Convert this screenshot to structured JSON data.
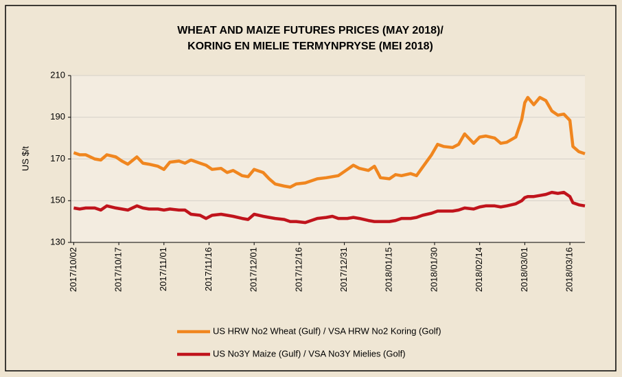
{
  "chart_data": {
    "type": "line",
    "title": [
      "WHEAT AND MAIZE FUTURES PRICES (MAY 2018)/",
      "KORING EN MIELIE TERMYNPRYSE (MEI 2018)"
    ],
    "y_label": "US $/t",
    "ylim": [
      130,
      210
    ],
    "yticks": [
      130,
      150,
      170,
      190,
      210
    ],
    "xlim": [
      "2017/10/01",
      "2018/03/21"
    ],
    "xticks": [
      "2017/10/02",
      "2017/10/17",
      "2017/11/01",
      "2017/11/16",
      "2017/12/01",
      "2017/12/16",
      "2017/12/31",
      "2018/01/15",
      "2018/01/30",
      "2018/02/14",
      "2018/03/01",
      "2018/03/16"
    ],
    "grid": true,
    "legend": "bottom",
    "x": [
      "2017/10/02",
      "2017/10/04",
      "2017/10/06",
      "2017/10/09",
      "2017/10/11",
      "2017/10/13",
      "2017/10/16",
      "2017/10/18",
      "2017/10/20",
      "2017/10/23",
      "2017/10/25",
      "2017/10/27",
      "2017/10/30",
      "2017/11/01",
      "2017/11/03",
      "2017/11/06",
      "2017/11/08",
      "2017/11/10",
      "2017/11/13",
      "2017/11/15",
      "2017/11/17",
      "2017/11/20",
      "2017/11/22",
      "2017/11/24",
      "2017/11/27",
      "2017/11/29",
      "2017/12/01",
      "2017/12/04",
      "2017/12/06",
      "2017/12/08",
      "2017/12/11",
      "2017/12/13",
      "2017/12/15",
      "2017/12/18",
      "2017/12/20",
      "2017/12/22",
      "2017/12/25",
      "2017/12/27",
      "2017/12/29",
      "2018/01/01",
      "2018/01/03",
      "2018/01/05",
      "2018/01/08",
      "2018/01/10",
      "2018/01/12",
      "2018/01/15",
      "2018/01/17",
      "2018/01/19",
      "2018/01/22",
      "2018/01/24",
      "2018/01/26",
      "2018/01/29",
      "2018/01/31",
      "2018/02/02",
      "2018/02/05",
      "2018/02/07",
      "2018/02/09",
      "2018/02/12",
      "2018/02/14",
      "2018/02/16",
      "2018/02/19",
      "2018/02/21",
      "2018/02/23",
      "2018/02/26",
      "2018/02/28",
      "2018/03/01",
      "2018/03/02",
      "2018/03/04",
      "2018/03/06",
      "2018/03/08",
      "2018/03/10",
      "2018/03/12",
      "2018/03/14",
      "2018/03/16",
      "2018/03/17",
      "2018/03/19",
      "2018/03/21"
    ],
    "series": [
      {
        "name": "US HRW No2 Wheat (Gulf) / VSA HRW No2 Koring (Golf)",
        "color": "#f0861f",
        "values": [
          173,
          172,
          172,
          170,
          169.5,
          172,
          171,
          169,
          167.5,
          171,
          168,
          167.5,
          166.5,
          165,
          168.5,
          169,
          168,
          169.5,
          168,
          167,
          165,
          165.5,
          163.5,
          164.5,
          162,
          161.5,
          165,
          163.5,
          160.5,
          158,
          157,
          156.5,
          158,
          158.5,
          159.5,
          160.5,
          161,
          161.5,
          162,
          165,
          167,
          165.5,
          164.5,
          166.5,
          161,
          160.5,
          162.5,
          162,
          163,
          162,
          166,
          172,
          177,
          176,
          175.5,
          177,
          182,
          177.5,
          180.5,
          181,
          180,
          177.5,
          178,
          180.5,
          189,
          197,
          199.5,
          196,
          199.5,
          198,
          193,
          191,
          191.5,
          188.5,
          176,
          173.5,
          172.5
        ]
      },
      {
        "name": "US No3Y Maize (Gulf) / VSA No3Y Mielies (Golf)",
        "color": "#c0141c",
        "values": [
          146.5,
          146,
          146.5,
          146.5,
          145.5,
          147.5,
          146.5,
          146,
          145.5,
          147.5,
          146.5,
          146,
          146,
          145.5,
          146,
          145.5,
          145.5,
          143.5,
          143,
          141.5,
          143,
          143.5,
          143,
          142.5,
          141.5,
          141,
          143.5,
          142.5,
          142,
          141.5,
          141,
          140,
          140,
          139.5,
          140.5,
          141.5,
          142,
          142.5,
          141.5,
          141.5,
          142,
          141.5,
          140.5,
          140,
          140,
          140,
          140.5,
          141.5,
          141.5,
          142,
          143,
          144,
          145,
          145,
          145,
          145.5,
          146.5,
          146,
          147,
          147.5,
          147.5,
          147,
          147.5,
          148.5,
          150,
          151.5,
          152,
          152,
          152.5,
          153,
          154,
          153.5,
          154,
          152,
          149,
          148,
          147.5
        ]
      }
    ]
  }
}
